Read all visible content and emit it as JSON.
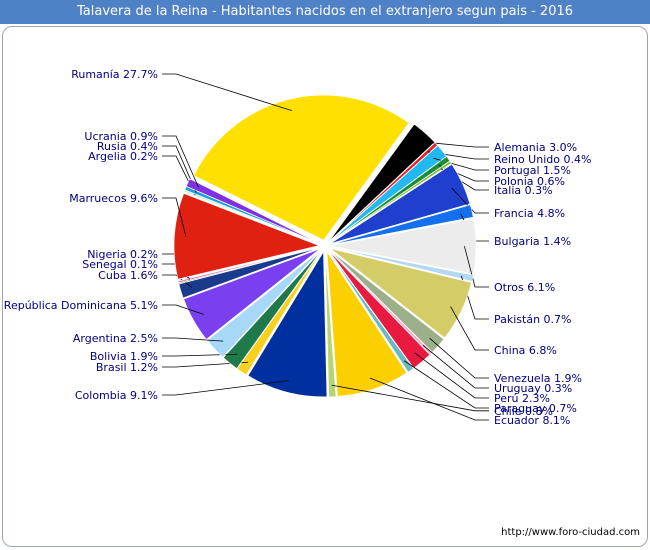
{
  "title": "Talavera de la Reina - Habitantes nacidos en el extranjero segun pais - 2016",
  "source": "http://www.foro-ciudad.com",
  "chart_data": {
    "type": "pie",
    "title": "Talavera de la Reina - Habitantes nacidos en el extranjero segun pais - 2016",
    "slices": [
      {
        "label": "Alemania",
        "value": 3.0,
        "text": "Alemania 3.0%",
        "color": "#000000"
      },
      {
        "label": "Reino Unido",
        "value": 0.4,
        "text": "Reino Unido 0.4%",
        "color": "#e0202a"
      },
      {
        "label": "Portugal",
        "value": 1.5,
        "text": "Portugal 1.5%",
        "color": "#22b8f0"
      },
      {
        "label": "Polonia",
        "value": 0.6,
        "text": "Polonia 0.6%",
        "color": "#1a8c3a"
      },
      {
        "label": "Italia",
        "value": 0.3,
        "text": "Italia 0.3%",
        "color": "#7fbf3f"
      },
      {
        "label": "Francia",
        "value": 4.8,
        "text": "Francia 4.8%",
        "color": "#1f3fcf"
      },
      {
        "label": "Bulgaria",
        "value": 1.4,
        "text": "Bulgaria 1.4%",
        "color": "#1470ee"
      },
      {
        "label": "Otros",
        "value": 6.1,
        "text": "Otros 6.1%",
        "color": "#ececec"
      },
      {
        "label": "Pakistán",
        "value": 0.7,
        "text": "Pakistán 0.7%",
        "color": "#b2d8f2"
      },
      {
        "label": "China",
        "value": 6.8,
        "text": "China 6.8%",
        "color": "#d4cc66"
      },
      {
        "label": "Venezuela",
        "value": 1.9,
        "text": "Venezuela 1.9%",
        "color": "#9bb08a"
      },
      {
        "label": "Uruguay",
        "value": 0.3,
        "text": "Uruguay 0.3%",
        "color": "#f2a8c2"
      },
      {
        "label": "Perú",
        "value": 2.3,
        "text": "Perú 2.3%",
        "color": "#e81a40"
      },
      {
        "label": "Paraguay",
        "value": 0.7,
        "text": "Paraguay 0.7%",
        "color": "#6ab8c2"
      },
      {
        "label": "Ecuador",
        "value": 8.1,
        "text": "Ecuador 8.1%",
        "color": "#fcd000"
      },
      {
        "label": "Chile",
        "value": 0.8,
        "text": "Chile 0.8%",
        "color": "#b8d470"
      },
      {
        "label": "Colombia",
        "value": 9.1,
        "text": "Colombia 9.1%",
        "color": "#0030a0"
      },
      {
        "label": "Brasil",
        "value": 1.2,
        "text": "Brasil 1.2%",
        "color": "#f8d020"
      },
      {
        "label": "Bolivia",
        "value": 1.9,
        "text": "Bolivia 1.9%",
        "color": "#1e7a4a"
      },
      {
        "label": "Argentina",
        "value": 2.5,
        "text": "Argentina 2.5%",
        "color": "#a8d8f8"
      },
      {
        "label": "República Dominicana",
        "value": 5.1,
        "text": "República Dominicana 5.1%",
        "color": "#7a40f0"
      },
      {
        "label": "Cuba",
        "value": 1.6,
        "text": "Cuba 1.6%",
        "color": "#1a3a8c"
      },
      {
        "label": "Senegal",
        "value": 0.1,
        "text": "Senegal 0.1%",
        "color": "#30a040"
      },
      {
        "label": "Nigeria",
        "value": 0.2,
        "text": "Nigeria 0.2%",
        "color": "#e070b0"
      },
      {
        "label": "Marruecos",
        "value": 9.6,
        "text": "Marruecos 9.6%",
        "color": "#e02010"
      },
      {
        "label": "Argelia",
        "value": 0.2,
        "text": "Argelia 0.2%",
        "color": "#d0e8c0"
      },
      {
        "label": "Rusia",
        "value": 0.4,
        "text": "Rusia 0.4%",
        "color": "#1aa0e0"
      },
      {
        "label": "Ucrania",
        "value": 0.9,
        "text": "Ucrania 0.9%",
        "color": "#8030e0"
      },
      {
        "label": "Rumanía",
        "value": 27.7,
        "text": "Rumanía 27.7%",
        "color": "#ffe000"
      }
    ]
  }
}
